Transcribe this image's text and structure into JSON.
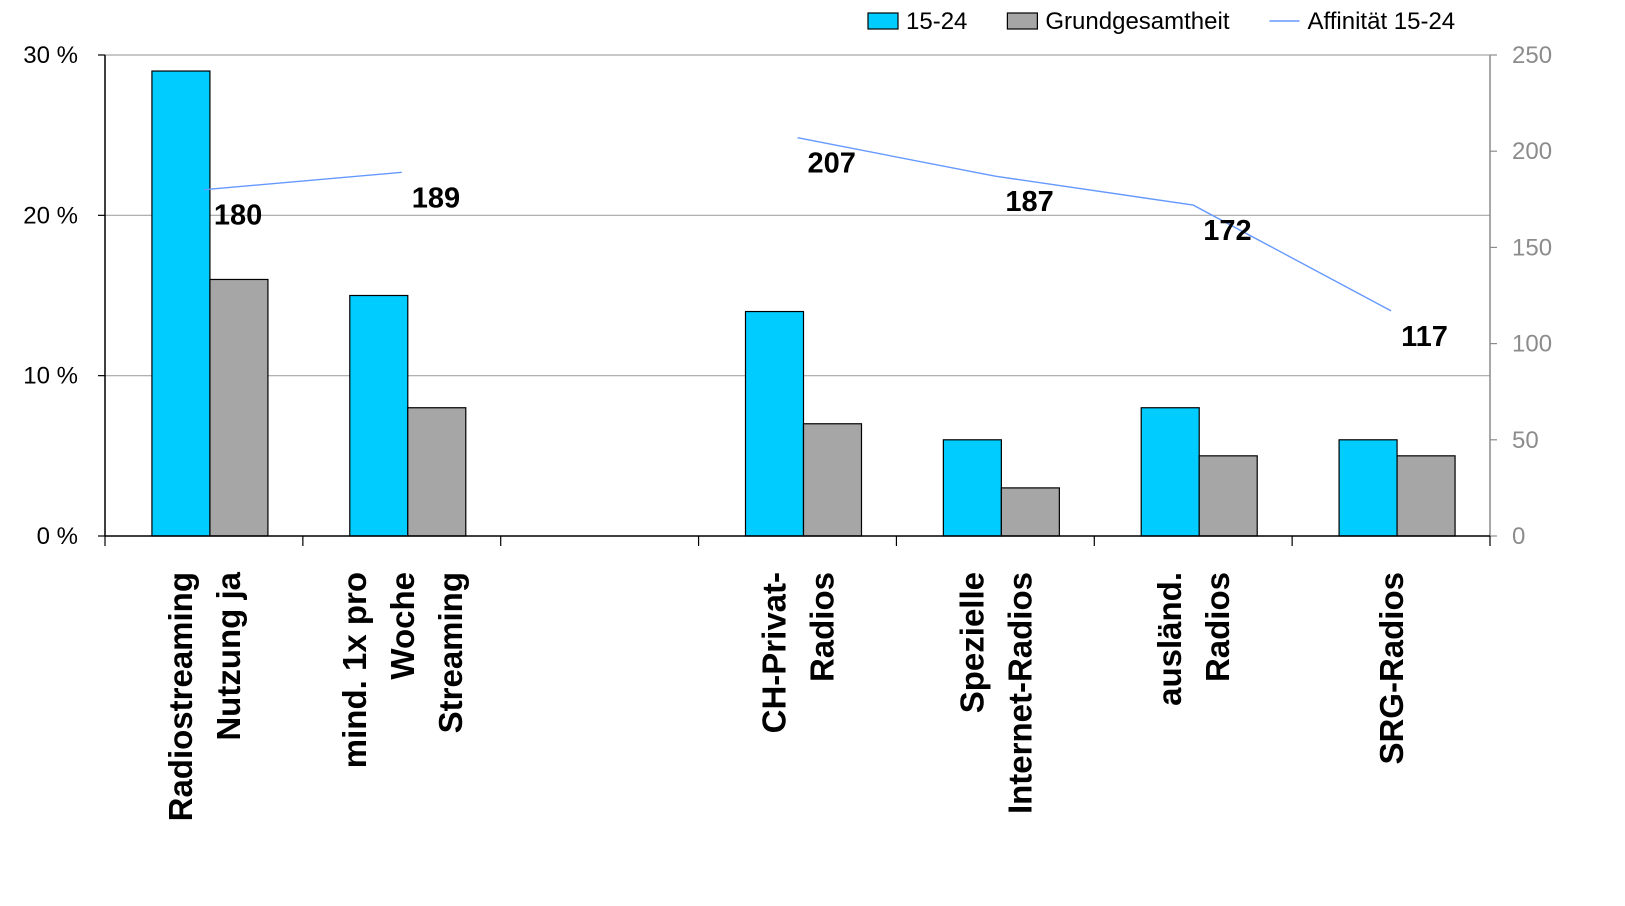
{
  "chart_data": {
    "type": "bar",
    "categories": [
      [
        "Radiostreaming",
        "Nutzung ja"
      ],
      [
        "mind. 1x pro",
        "Woche",
        "Streaming"
      ],
      [],
      [
        "CH-Privat-",
        "Radios"
      ],
      [
        "Spezielle",
        "Internet-Radios"
      ],
      [
        "ausländ.",
        "Radios"
      ],
      [
        "SRG-Radios"
      ]
    ],
    "series": [
      {
        "name": "15-24",
        "kind": "bar",
        "axis": "left",
        "color": "#00ccff",
        "values": [
          29,
          15,
          null,
          14,
          6,
          8,
          6
        ]
      },
      {
        "name": "Grundgesamtheit",
        "kind": "bar",
        "axis": "left",
        "color": "#a6a6a6",
        "values": [
          16,
          8,
          null,
          7,
          3,
          5,
          5
        ]
      },
      {
        "name": "Affinität 15-24",
        "kind": "line",
        "axis": "right",
        "color": "#6699ff",
        "values": [
          180,
          189,
          null,
          207,
          187,
          172,
          117
        ],
        "labels": [
          "180",
          "189",
          "",
          "207",
          "187",
          "172",
          "117"
        ]
      }
    ],
    "y_left": {
      "ylim": [
        0,
        30
      ],
      "ticks": [
        "0 %",
        "10 %",
        "20 %",
        "30 %"
      ],
      "tick_values": [
        0,
        10,
        20,
        30
      ]
    },
    "y_right": {
      "ylim": [
        0,
        250
      ],
      "ticks": [
        "0",
        "50",
        "100",
        "150",
        "200",
        "250"
      ],
      "tick_values": [
        0,
        50,
        100,
        150,
        200,
        250
      ]
    },
    "grid": "horizontal",
    "legend_position": "top-right",
    "title": "",
    "xlabel": "",
    "ylabel": ""
  }
}
